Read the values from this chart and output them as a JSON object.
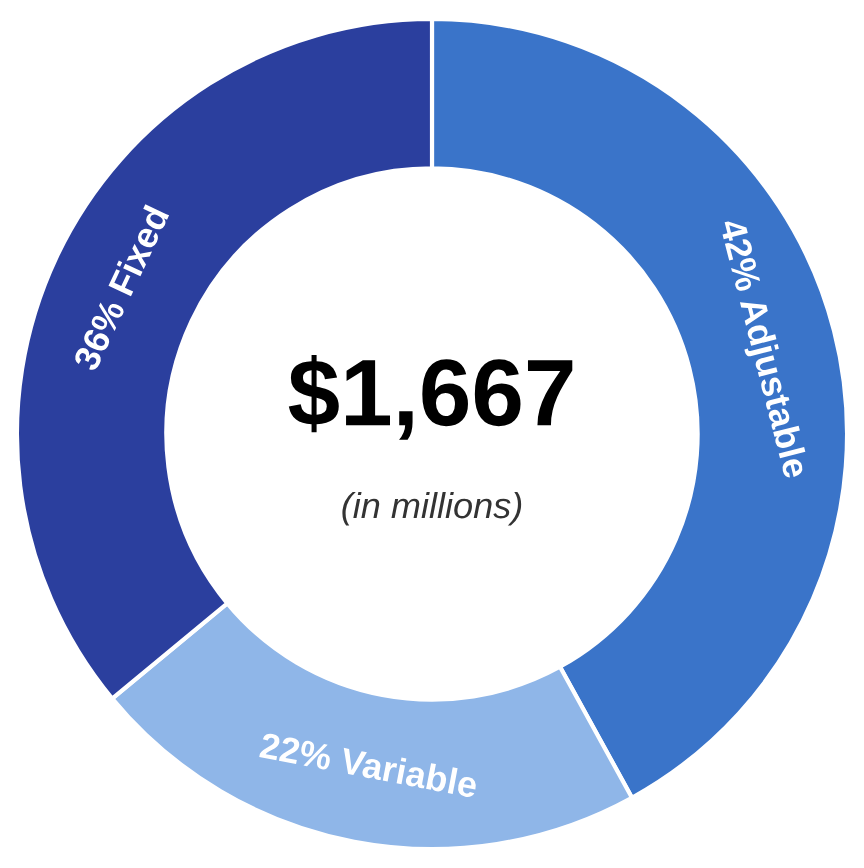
{
  "chart_data": {
    "type": "donut",
    "categories": [
      "Adjustable",
      "Variable",
      "Fixed"
    ],
    "values": [
      42,
      22,
      36
    ],
    "value_labels": [
      "42%",
      "22%",
      "36%"
    ],
    "colors": [
      "#3a74c9",
      "#8fb6e8",
      "#2b3f9e"
    ],
    "annotations": [
      "$1,667",
      "(in millions)"
    ],
    "legend": false
  }
}
